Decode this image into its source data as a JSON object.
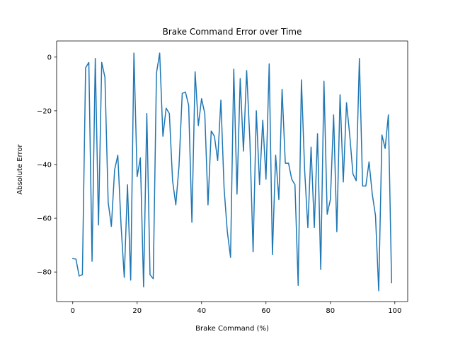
{
  "chart_data": {
    "type": "line",
    "title": "Brake Command Error over Time",
    "xlabel": "Brake Command (%)",
    "ylabel": "Absolute Error",
    "xlim": [
      -5,
      104
    ],
    "ylim": [
      -91,
      6
    ],
    "xticks": [
      0,
      20,
      40,
      60,
      80,
      100
    ],
    "yticks": [
      0,
      -20,
      -40,
      -60,
      -80
    ],
    "xtick_labels": [
      "0",
      "20",
      "40",
      "60",
      "80",
      "100"
    ],
    "ytick_labels": [
      "0",
      "−20",
      "−40",
      "−60",
      "−80"
    ],
    "grid": false,
    "series": [
      {
        "color": "#1f77b4",
        "x": [
          0,
          1,
          2,
          3,
          4,
          5,
          6,
          7,
          8,
          9,
          10,
          11,
          12,
          13,
          14,
          15,
          16,
          17,
          18,
          19,
          20,
          21,
          22,
          23,
          24,
          25,
          26,
          27,
          28,
          29,
          30,
          31,
          32,
          33,
          34,
          35,
          36,
          37,
          38,
          39,
          40,
          41,
          42,
          43,
          44,
          45,
          46,
          47,
          48,
          49,
          50,
          51,
          52,
          53,
          54,
          55,
          56,
          57,
          58,
          59,
          60,
          61,
          62,
          63,
          64,
          65,
          66,
          67,
          68,
          69,
          70,
          71,
          72,
          73,
          74,
          75,
          76,
          77,
          78,
          79,
          80,
          81,
          82,
          83,
          84,
          85,
          86,
          87,
          88,
          89,
          90,
          91,
          92,
          93,
          94,
          95,
          96,
          97,
          98,
          99
        ],
        "y": [
          -75,
          -75.2,
          -81.5,
          -81,
          -4,
          -2,
          -76,
          -0.5,
          -62.5,
          -2,
          -7.5,
          -54,
          -63,
          -42,
          -36.5,
          -62.5,
          -82,
          -47.5,
          -83,
          1.5,
          -44.5,
          -37.5,
          -85.5,
          -21,
          -81,
          -82.5,
          -6,
          1.5,
          -29.5,
          -19,
          -21,
          -46,
          -55,
          -40.5,
          -13.5,
          -13,
          -18,
          -61.5,
          -5.5,
          -25.5,
          -15.5,
          -21,
          -55,
          -27.5,
          -29.5,
          -38.5,
          -16,
          -49,
          -65,
          -74.5,
          -4.5,
          -51,
          -8,
          -35,
          -5,
          -31,
          -72.5,
          -20,
          -47.5,
          -23.5,
          -45.5,
          -2.5,
          -73.5,
          -36.5,
          -53,
          -12,
          -39.5,
          -39.5,
          -45.5,
          -47.5,
          -85,
          -8.5,
          -42,
          -63.5,
          -33.5,
          -63.5,
          -28.5,
          -79,
          -9,
          -58.5,
          -53,
          -21.5,
          -65,
          -14,
          -46.5,
          -17,
          -29,
          -43.5,
          -46,
          -0.5,
          -48,
          -48,
          -39,
          -51,
          -59,
          -87,
          -29,
          -34,
          -21.5,
          -84
        ]
      }
    ]
  }
}
